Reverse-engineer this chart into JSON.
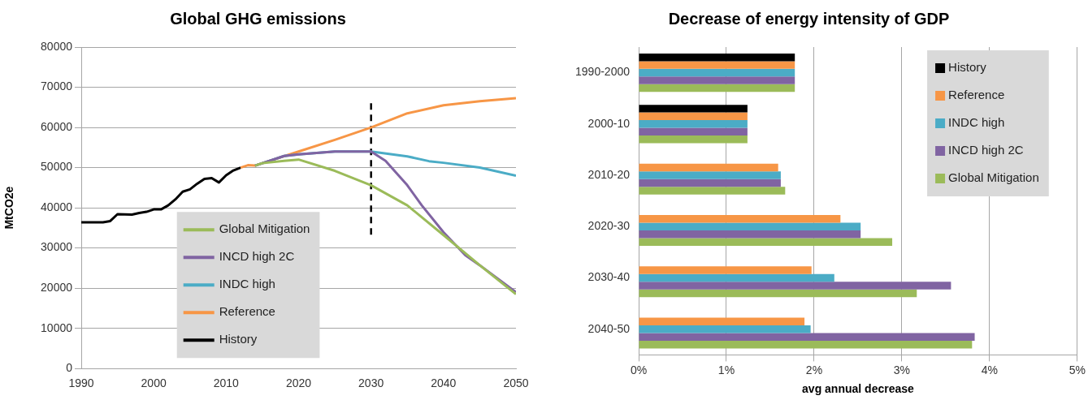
{
  "chart_data": [
    {
      "type": "line",
      "title": "Global GHG emissions",
      "ylabel": "MtCO2e",
      "xlim": [
        1990,
        2050
      ],
      "xticks": [
        1990,
        2000,
        2010,
        2020,
        2030,
        2040,
        2050
      ],
      "ylim": [
        0,
        80000
      ],
      "yticks": [
        0,
        10000,
        20000,
        30000,
        40000,
        50000,
        60000,
        70000,
        80000
      ],
      "grid": "y",
      "legend": "bottom left",
      "marker": "none",
      "series": [
        {
          "name": "Global Mitigation",
          "color": "#9bbb59",
          "x": [
            2014,
            2015,
            2018,
            2020,
            2025,
            2030,
            2035,
            2040,
            2045,
            2050
          ],
          "values": [
            50500,
            51100,
            51700,
            52000,
            49200,
            45600,
            40600,
            33200,
            25700,
            18500
          ]
        },
        {
          "name": "INCD high 2C",
          "color": "#8064a2",
          "x": [
            2014,
            2015,
            2018,
            2020,
            2025,
            2030,
            2032,
            2035,
            2037,
            2040,
            2043,
            2045,
            2050
          ],
          "values": [
            50500,
            51100,
            52900,
            53300,
            54000,
            54000,
            51700,
            45600,
            40600,
            33900,
            28200,
            25700,
            19000
          ]
        },
        {
          "name": "INDC high",
          "color": "#4bacc6",
          "x": [
            2014,
            2015,
            2018,
            2020,
            2025,
            2030,
            2035,
            2038,
            2040,
            2045,
            2050
          ],
          "values": [
            50500,
            51100,
            52900,
            53300,
            54000,
            54000,
            52800,
            51600,
            51200,
            50000,
            48000
          ]
        },
        {
          "name": "Reference",
          "color": "#f79646",
          "x": [
            2012,
            2013,
            2014,
            2015,
            2020,
            2025,
            2030,
            2035,
            2040,
            2045,
            2050
          ],
          "values": [
            50000,
            50600,
            50500,
            51100,
            54000,
            56900,
            60000,
            63500,
            65500,
            66500,
            67300
          ]
        },
        {
          "name": "History",
          "color": "#000000",
          "x": [
            1990,
            1993,
            1994,
            1995,
            1997,
            1998,
            1999,
            2000,
            2001,
            2002,
            2003,
            2004,
            2005,
            2006,
            2007,
            2008,
            2009,
            2010,
            2011,
            2012
          ],
          "values": [
            36400,
            36400,
            36700,
            38400,
            38300,
            38700,
            39000,
            39600,
            39600,
            40600,
            42100,
            44000,
            44600,
            46000,
            47200,
            47400,
            46300,
            48100,
            49300,
            50000
          ]
        },
        {
          "color": "#000000",
          "line_style": "dashed",
          "x": [
            2030,
            2030
          ],
          "values": [
            66000,
            33000
          ]
        }
      ]
    },
    {
      "type": "bar",
      "orientation": "horizontal",
      "title": "Decrease of energy intensity of GDP",
      "xlabel": "avg annual decrease",
      "categories": [
        "1990-2000",
        "2000-10",
        "2010-20",
        "2020-30",
        "2030-40",
        "2040-50"
      ],
      "xlim": [
        0,
        5
      ],
      "xticks": [
        {
          "value": 0,
          "label": "0%"
        },
        {
          "value": 1,
          "label": "1%"
        },
        {
          "value": 2,
          "label": "2%"
        },
        {
          "value": 3,
          "label": "3%"
        },
        {
          "value": 4,
          "label": "4%"
        },
        {
          "value": 5,
          "label": "5%"
        }
      ],
      "grid": "x",
      "legend": "top right",
      "series": [
        {
          "name": "History",
          "color": "#000000",
          "values": [
            1.78,
            1.24,
            null,
            null,
            null,
            null
          ]
        },
        {
          "name": "Reference",
          "color": "#f79646",
          "values": [
            1.78,
            1.24,
            1.59,
            2.3,
            1.97,
            1.89
          ]
        },
        {
          "name": "INDC high",
          "color": "#4bacc6",
          "values": [
            1.78,
            1.24,
            1.62,
            2.53,
            2.23,
            1.96
          ]
        },
        {
          "name": "INCD high 2C",
          "color": "#8064a2",
          "values": [
            1.78,
            1.24,
            1.62,
            2.53,
            3.56,
            3.83
          ]
        },
        {
          "name": "Global Mitigation",
          "color": "#9bbb59",
          "values": [
            1.78,
            1.24,
            1.67,
            2.89,
            3.17,
            3.8
          ]
        }
      ]
    }
  ]
}
